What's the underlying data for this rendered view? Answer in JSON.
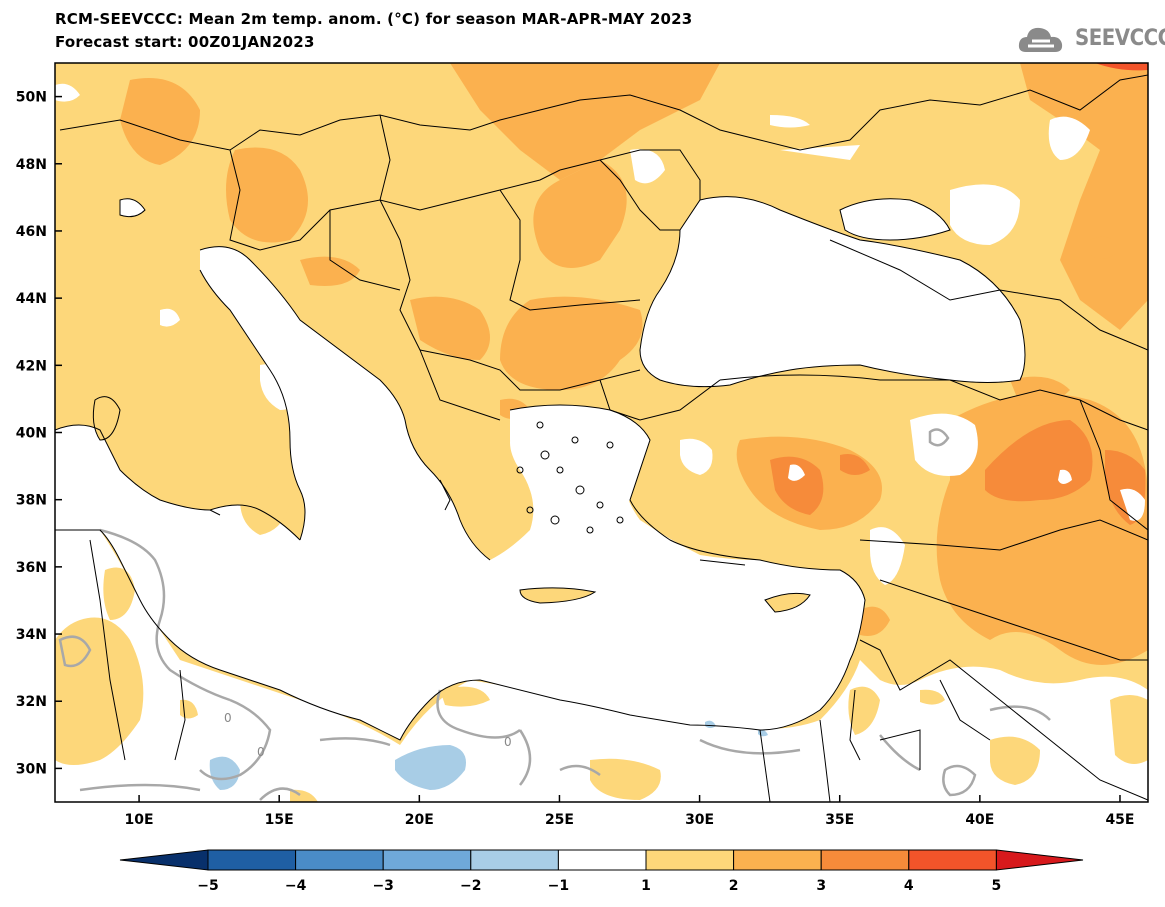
{
  "header": {
    "title_line1": "RCM-SEEVCCC: Mean 2m temp. anom. (°C) for season MAR-APR-MAY 2023",
    "title_line2": "Forecast start: 00Z01JAN2023",
    "logo_text": "SEEVCCC",
    "logo_icon": "cloud-icon"
  },
  "map": {
    "lon_range": [
      7,
      46
    ],
    "lat_range": [
      29,
      51
    ],
    "lat_ticks": [
      "50N",
      "48N",
      "46N",
      "44N",
      "42N",
      "40N",
      "38N",
      "36N",
      "34N",
      "32N",
      "30N"
    ],
    "lon_ticks": [
      "10E",
      "15E",
      "20E",
      "25E",
      "30E",
      "35E",
      "40E",
      "45E"
    ],
    "contour_labels": [
      "0",
      "0",
      "0"
    ]
  },
  "colorbar": {
    "labels": [
      "-5",
      "-4",
      "-3",
      "-2",
      "-1",
      "1",
      "2",
      "3",
      "4",
      "5"
    ],
    "colors": [
      "#08306b",
      "#1f5fa3",
      "#4a8cc7",
      "#6fa9d9",
      "#a8cde6",
      "#ffffff",
      "#fdd77a",
      "#fbb14f",
      "#f68b3a",
      "#f3542a",
      "#d7191c"
    ]
  }
}
